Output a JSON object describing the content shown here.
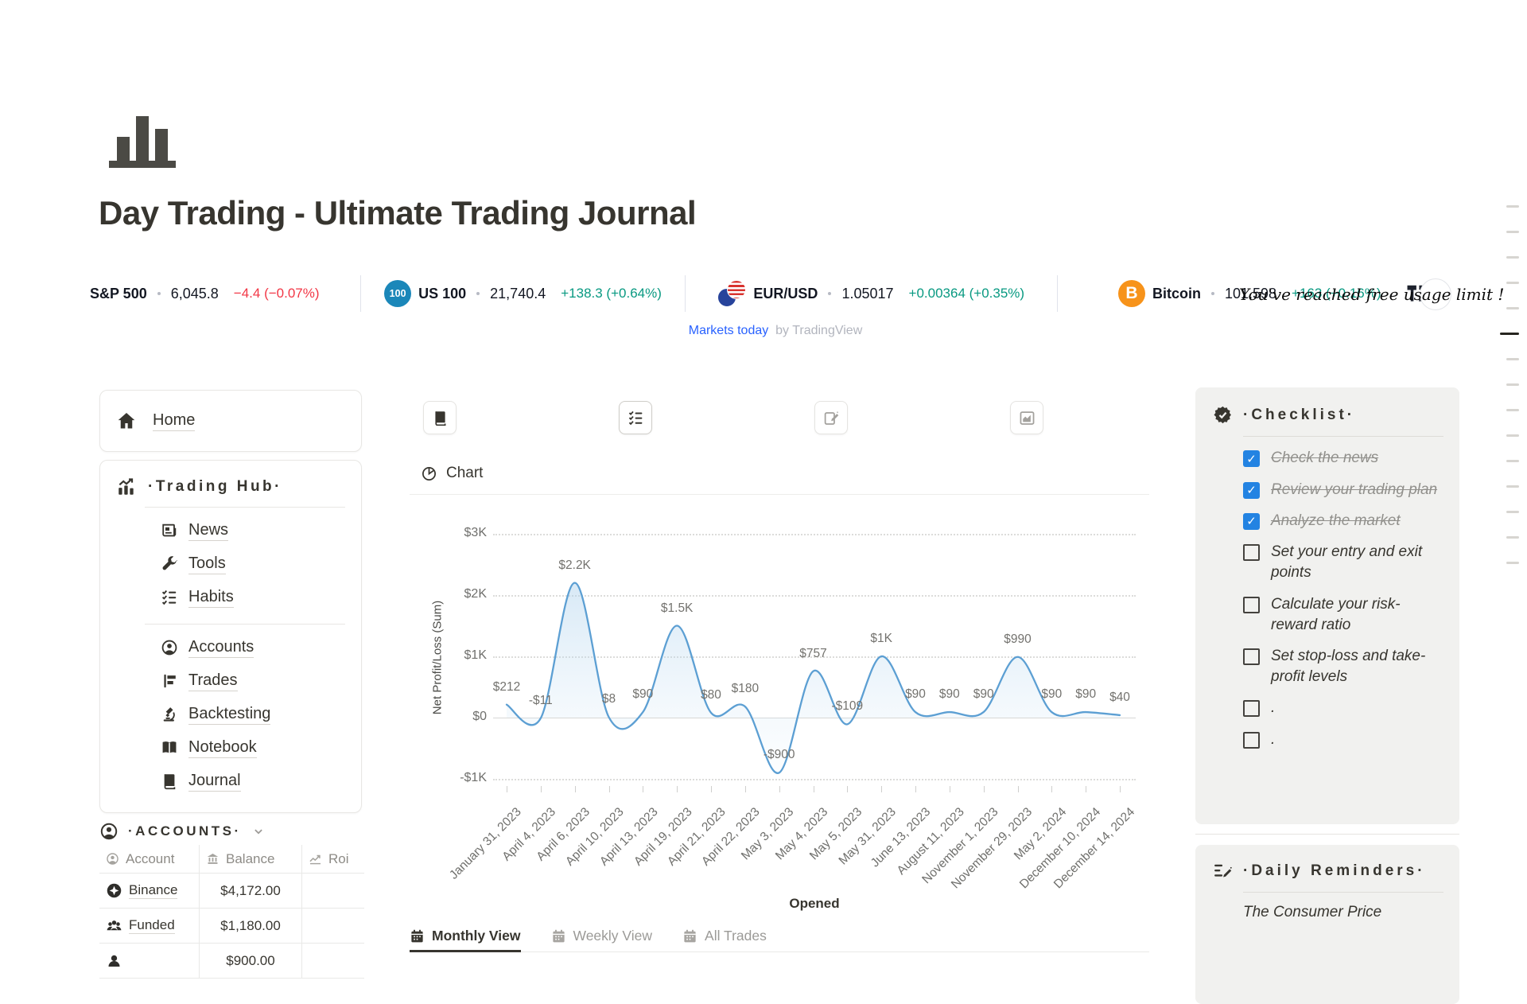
{
  "page": {
    "title": "Day Trading - Ultimate Trading Journal",
    "icon": "bar-chart"
  },
  "ticker": {
    "items": [
      {
        "symbol": "S&P 500",
        "value": "6,045.8",
        "change": "−4.4 (−0.07%)",
        "direction": "down",
        "icon": "sp500-icon"
      },
      {
        "symbol": "US 100",
        "value": "21,740.4",
        "change": "+138.3 (+0.64%)",
        "direction": "up",
        "icon": "us100-icon",
        "icon_text": "100"
      },
      {
        "symbol": "EUR/USD",
        "value": "1.05017",
        "change": "+0.00364 (+0.35%)",
        "direction": "up",
        "icon": "eurusd-icon"
      },
      {
        "symbol": "Bitcoin",
        "value": "101,598",
        "change": "+163 (+0.16%)",
        "direction": "up",
        "icon": "bitcoin-icon",
        "icon_text": "B"
      }
    ],
    "notice": "You've reached free usage limit !",
    "colors": {
      "up": "#089981",
      "down": "#f23645"
    }
  },
  "attribution": {
    "link_text": "Markets today",
    "by_text": "by TradingView"
  },
  "sidebar": {
    "home": {
      "label": "Home",
      "icon": "home-icon"
    },
    "trading_hub": {
      "title": "·Trading Hub·",
      "icon": "chart-bars-icon",
      "groups": [
        [
          {
            "label": "News",
            "icon": "news-icon"
          },
          {
            "label": "Tools",
            "icon": "wrench-icon"
          },
          {
            "label": "Habits",
            "icon": "habits-icon"
          }
        ],
        [
          {
            "label": "Accounts",
            "icon": "person-icon"
          },
          {
            "label": "Trades",
            "icon": "flag-icon"
          },
          {
            "label": "Backtesting",
            "icon": "microscope-icon"
          },
          {
            "label": "Notebook",
            "icon": "open-book-icon"
          },
          {
            "label": "Journal",
            "icon": "book-icon"
          }
        ]
      ]
    },
    "accounts_section": {
      "title": "·ACCOUNTS·",
      "icon": "person-icon"
    },
    "accounts_table": {
      "headers": [
        {
          "label": "Account",
          "icon": "person-icon"
        },
        {
          "label": "Balance",
          "icon": "bank-icon"
        },
        {
          "label": "Roi",
          "icon": "trend-icon"
        }
      ],
      "rows": [
        {
          "account": "Binance",
          "icon": "binance-icon",
          "balance": "$4,172.00",
          "roi": ""
        },
        {
          "account": "Funded",
          "icon": "people-icon",
          "balance": "$1,180.00",
          "roi": ""
        },
        {
          "account": "",
          "icon": "person-solid-icon",
          "balance": "$900.00",
          "roi": ""
        }
      ]
    }
  },
  "toolbar": {
    "buttons": [
      {
        "icon": "book-icon",
        "tone": "dark",
        "outlined": false
      },
      {
        "icon": "habits-icon",
        "tone": "dark",
        "outlined": true
      },
      {
        "icon": "edit-square-icon",
        "tone": "light",
        "outlined": false
      },
      {
        "icon": "chart-area-icon",
        "tone": "light",
        "outlined": false
      }
    ]
  },
  "chart_section": {
    "title": "Chart",
    "icon": "pie-icon"
  },
  "chart_data": {
    "type": "line",
    "title": "Chart",
    "xlabel": "Opened",
    "ylabel": "Net Profit/Loss (Sum)",
    "x": [
      "January 31, 2023",
      "April 4, 2023",
      "April 6, 2023",
      "April 10, 2023",
      "April 13, 2023",
      "April 19, 2023",
      "April 21, 2023",
      "April 22, 2023",
      "May 3, 2023",
      "May 4, 2023",
      "May 5, 2023",
      "May 31, 2023",
      "June 13, 2023",
      "August 11, 2023",
      "November 1, 2023",
      "November 29, 2023",
      "May 2, 2024",
      "December 10, 2024",
      "December 14, 2024"
    ],
    "values": [
      212,
      -11,
      2200,
      8,
      90,
      1500,
      80,
      180,
      -900,
      757,
      -109,
      1000,
      90,
      90,
      90,
      990,
      90,
      90,
      40
    ],
    "labels": [
      "$212",
      "-$11",
      "$2.2K",
      "$8",
      "$90",
      "$1.5K",
      "$80",
      "$180",
      "-$900",
      "$757",
      "-$109",
      "$1K",
      "$90",
      "$90",
      "$90",
      "$990",
      "$90",
      "$90",
      "$40"
    ],
    "yticks": [
      "$3K",
      "$2K",
      "$1K",
      "$0",
      "-$1K"
    ],
    "ytick_values": [
      3000,
      2000,
      1000,
      0,
      -1000
    ],
    "ylim": [
      -1000,
      3000
    ],
    "grid": "dotted horizontal",
    "legend": "none",
    "line_color": "#5c9fd3",
    "fill_color_top": "rgba(168,206,235,0.45)",
    "fill_color_bottom": "rgba(208,230,246,0.06)"
  },
  "tabs": [
    {
      "label": "Monthly View",
      "icon": "calendar-icon",
      "active": true
    },
    {
      "label": "Weekly View",
      "icon": "calendar-icon",
      "active": false
    },
    {
      "label": "All Trades",
      "icon": "calendar-icon",
      "active": false
    }
  ],
  "checklist": {
    "title": "·Checklist·",
    "icon": "seal-check-icon",
    "items": [
      {
        "text": "Check the news",
        "checked": true
      },
      {
        "text": "Review your trading plan",
        "checked": true
      },
      {
        "text": "Analyze the market",
        "checked": true
      },
      {
        "text": "Set your entry and exit points",
        "checked": false
      },
      {
        "text": "Calculate your risk-reward ratio",
        "checked": false
      },
      {
        "text": "Set stop-loss and take-profit levels",
        "checked": false
      },
      {
        "text": ".",
        "checked": false
      },
      {
        "text": ".",
        "checked": false
      }
    ]
  },
  "daily_reminders": {
    "title": "·Daily Reminders·",
    "icon": "pencil-lines-icon",
    "text": "The Consumer Price"
  }
}
